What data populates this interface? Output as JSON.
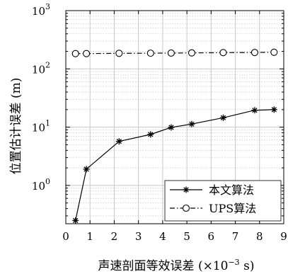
{
  "chart_data": {
    "type": "line",
    "xlabel": "声速剖面等效误差 (×10⁻³ s)",
    "xlabel_main": "声速剖面等效误差 (×10",
    "xlabel_exp": "−3",
    "xlabel_tail": " s)",
    "ylabel": "位置估计误差 (m)",
    "xlim": [
      0,
      9
    ],
    "ylim": [
      0.22,
      1000
    ],
    "yscale": "log",
    "grid": true,
    "legend_position": "bottom-right",
    "x_ticks": [
      "0",
      "1",
      "2",
      "3",
      "4",
      "5",
      "6",
      "7",
      "8",
      "9"
    ],
    "y_ticks": [
      {
        "base": "10",
        "exp": "0",
        "value": 1
      },
      {
        "base": "10",
        "exp": "1",
        "value": 10
      },
      {
        "base": "10",
        "exp": "2",
        "value": 100
      },
      {
        "base": "10",
        "exp": "3",
        "value": 1000
      }
    ],
    "series": [
      {
        "name": "本文算法",
        "marker": "star",
        "line": "solid",
        "color": "#000000",
        "x": [
          0.4,
          0.85,
          2.2,
          3.5,
          4.35,
          5.2,
          6.5,
          7.8,
          8.6
        ],
        "y": [
          0.25,
          1.9,
          5.7,
          7.5,
          9.9,
          11.3,
          14.5,
          19.5,
          20.0
        ]
      },
      {
        "name": "UPS算法",
        "marker": "circle",
        "line": "dashdot",
        "color": "#000000",
        "x": [
          0.4,
          0.85,
          2.2,
          3.5,
          4.35,
          5.2,
          6.5,
          7.8,
          8.6
        ],
        "y": [
          183,
          183,
          185,
          186,
          187,
          188,
          190,
          191,
          193
        ]
      }
    ]
  }
}
